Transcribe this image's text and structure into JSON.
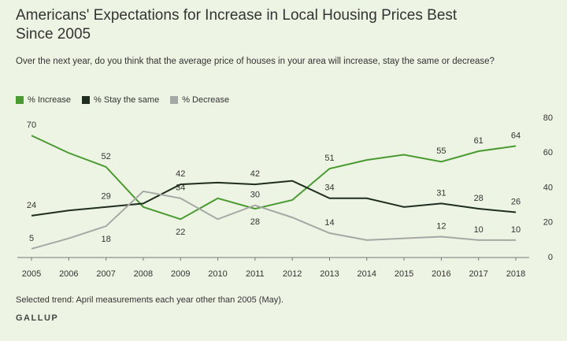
{
  "chart_data": {
    "type": "line",
    "title": "Americans' Expectations for Increase in Local Housing Prices Best Since 2005",
    "subtitle": "Over the next year, do you think that the average price of houses in your area will increase, stay the same or decrease?",
    "note": "Selected trend: April measurements each year other than 2005 (May).",
    "source": "GALLUP",
    "categories": [
      "2005",
      "2006",
      "2007",
      "2008",
      "2009",
      "2010",
      "2011",
      "2012",
      "2013",
      "2014",
      "2015",
      "2016",
      "2017",
      "2018"
    ],
    "series": [
      {
        "name": "% Increase",
        "color": "#4a9a32",
        "values": [
          70,
          60,
          52,
          29,
          22,
          34,
          28,
          33,
          51,
          56,
          59,
          55,
          61,
          64
        ],
        "value_labels": [
          "70",
          null,
          "52",
          null,
          "22",
          null,
          "28",
          null,
          "51",
          null,
          null,
          "55",
          "61",
          "64"
        ]
      },
      {
        "name": "% Stay the same",
        "color": "#1f2d1f",
        "values": [
          24,
          27,
          29,
          31,
          42,
          43,
          42,
          44,
          34,
          34,
          29,
          31,
          28,
          26
        ],
        "value_labels": [
          "24",
          null,
          "29",
          null,
          "42",
          null,
          "42",
          null,
          "34",
          null,
          null,
          "31",
          "28",
          "26"
        ]
      },
      {
        "name": "% Decrease",
        "color": "#a6a8a5",
        "values": [
          5,
          11,
          18,
          38,
          34,
          22,
          30,
          23,
          14,
          10,
          11,
          12,
          10,
          10
        ],
        "value_labels": [
          "5",
          null,
          "18",
          null,
          "34",
          null,
          "30",
          null,
          "14",
          null,
          null,
          "12",
          "10",
          "10"
        ]
      }
    ],
    "ylim": [
      0,
      80
    ],
    "yticks": [
      0,
      20,
      40,
      60,
      80
    ],
    "grid": false,
    "legend": "top-left"
  }
}
